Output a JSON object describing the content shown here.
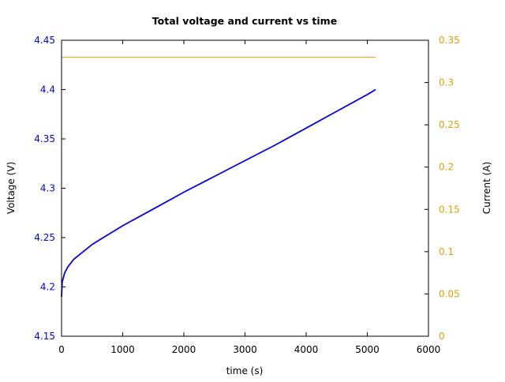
{
  "chart_data": {
    "type": "line",
    "title": "Total voltage and current vs time",
    "xlabel": "time (s)",
    "ylabel": "Voltage (V)",
    "y2label": "Current (A)",
    "xlim": [
      0,
      6000
    ],
    "ylim": [
      4.15,
      4.45
    ],
    "y2lim": [
      0,
      0.35
    ],
    "grid": false,
    "legend": "none",
    "xticks": [
      "0",
      "1000",
      "2000",
      "3000",
      "4000",
      "5000",
      "6000"
    ],
    "yticks": [
      "4.15",
      "4.2",
      "4.25",
      "4.3",
      "4.35",
      "4.4",
      "4.45"
    ],
    "y2ticks": [
      "0",
      "0.05",
      "0.1",
      "0.15",
      "0.2",
      "0.25",
      "0.3",
      "0.35"
    ],
    "colors": {
      "voltage": "#0000ee",
      "current": "#e0a000",
      "axis": "#000000"
    },
    "series": [
      {
        "name": "Voltage (V)",
        "axis": "left",
        "x": [
          0,
          10,
          50,
          100,
          200,
          500,
          1000,
          1500,
          2000,
          2500,
          3000,
          3500,
          4000,
          4500,
          5000,
          5135
        ],
        "y": [
          4.19,
          4.205,
          4.214,
          4.22,
          4.228,
          4.243,
          4.262,
          4.279,
          4.296,
          4.312,
          4.328,
          4.344,
          4.361,
          4.378,
          4.395,
          4.4
        ]
      },
      {
        "name": "Current (A)",
        "axis": "right",
        "x": [
          0,
          0,
          5135
        ],
        "y": [
          0,
          0.33,
          0.33
        ]
      }
    ]
  }
}
